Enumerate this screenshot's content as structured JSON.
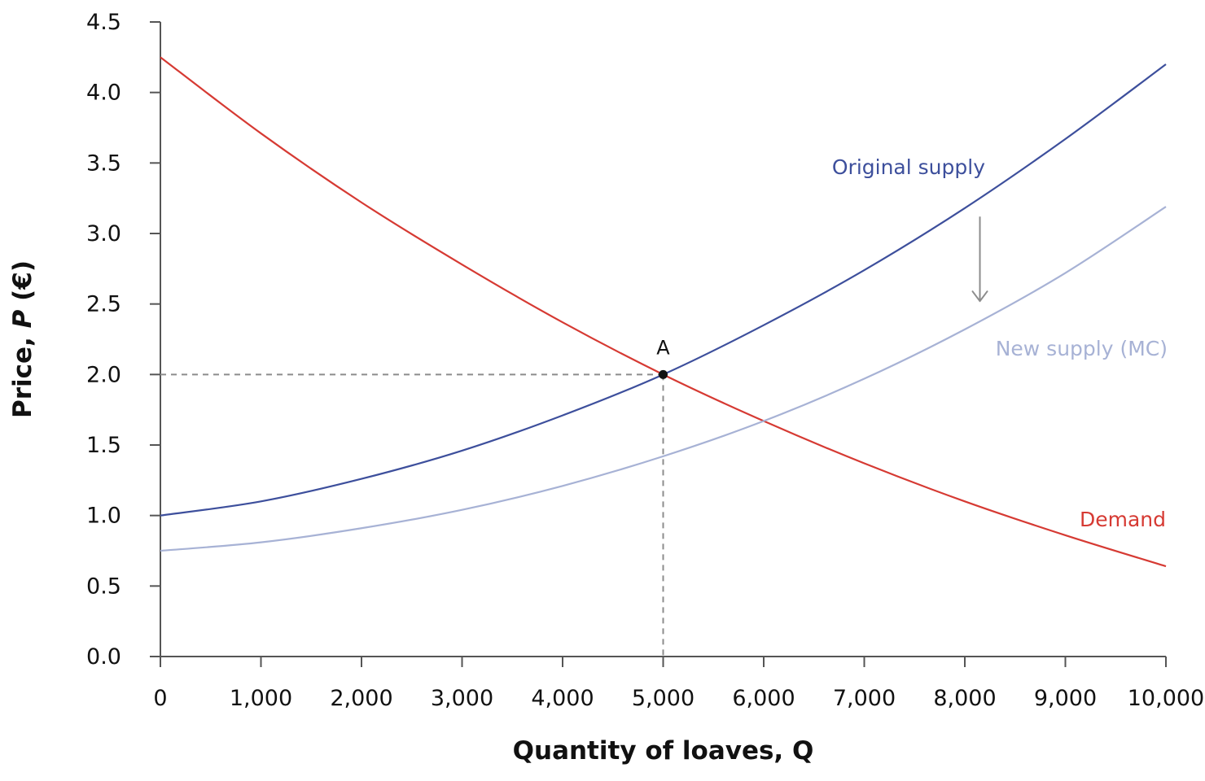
{
  "chart_data": {
    "type": "line",
    "title": "",
    "xlabel": "Quantity of loaves, Q",
    "ylabel_parts": [
      "Price, ",
      "P",
      " (€)"
    ],
    "xlim": [
      0,
      10000
    ],
    "ylim": [
      0,
      4.5
    ],
    "x_ticks": [
      0,
      1000,
      2000,
      3000,
      4000,
      5000,
      6000,
      7000,
      8000,
      9000,
      10000
    ],
    "x_tick_labels": [
      "0",
      "1,000",
      "2,000",
      "3,000",
      "4,000",
      "5,000",
      "6,000",
      "7,000",
      "8,000",
      "9,000",
      "10,000"
    ],
    "y_ticks": [
      0,
      0.5,
      1,
      1.5,
      2,
      2.5,
      3,
      3.5,
      4,
      4.5
    ],
    "y_tick_labels": [
      "0.0",
      "0.5",
      "1.0",
      "1.5",
      "2.0",
      "2.5",
      "3.0",
      "3.5",
      "4.0",
      "4.5"
    ],
    "grid": false,
    "series": [
      {
        "name": "Demand",
        "color": "#d63a33",
        "x": [
          0,
          1000,
          2000,
          3000,
          4000,
          5000,
          6000,
          7000,
          8000,
          9000,
          10000
        ],
        "y": [
          4.25,
          3.71,
          3.22,
          2.78,
          2.37,
          2.0,
          1.67,
          1.37,
          1.1,
          0.86,
          0.64
        ]
      },
      {
        "name": "Original supply",
        "color": "#3d4f9c",
        "x": [
          0,
          1000,
          2000,
          3000,
          4000,
          5000,
          6000,
          7000,
          8000,
          9000,
          10000
        ],
        "y": [
          1.0,
          1.1,
          1.26,
          1.46,
          1.71,
          2.0,
          2.35,
          2.74,
          3.18,
          3.67,
          4.2
        ]
      },
      {
        "name": "New supply (MC)",
        "color": "#a7b2d5",
        "x": [
          0,
          1000,
          2000,
          3000,
          4000,
          5000,
          6000,
          7000,
          8000,
          9000,
          10000
        ],
        "y": [
          0.75,
          0.81,
          0.91,
          1.04,
          1.21,
          1.42,
          1.67,
          1.97,
          2.32,
          2.72,
          3.19
        ]
      }
    ],
    "points": [
      {
        "label": "A",
        "x": 5000,
        "y": 2.0
      }
    ],
    "reference_lines": [
      {
        "type": "dashed",
        "x": 5000,
        "y": 2.0
      }
    ],
    "annotations": [
      {
        "type": "arrow",
        "x": 8150,
        "from_y": 3.12,
        "to_y": 2.52,
        "meaning": "supply shift down"
      }
    ],
    "colors": {
      "axis": "#555555",
      "reference": "#8c8c8c",
      "arrow": "#8c8c8c",
      "point": "#111111"
    }
  }
}
